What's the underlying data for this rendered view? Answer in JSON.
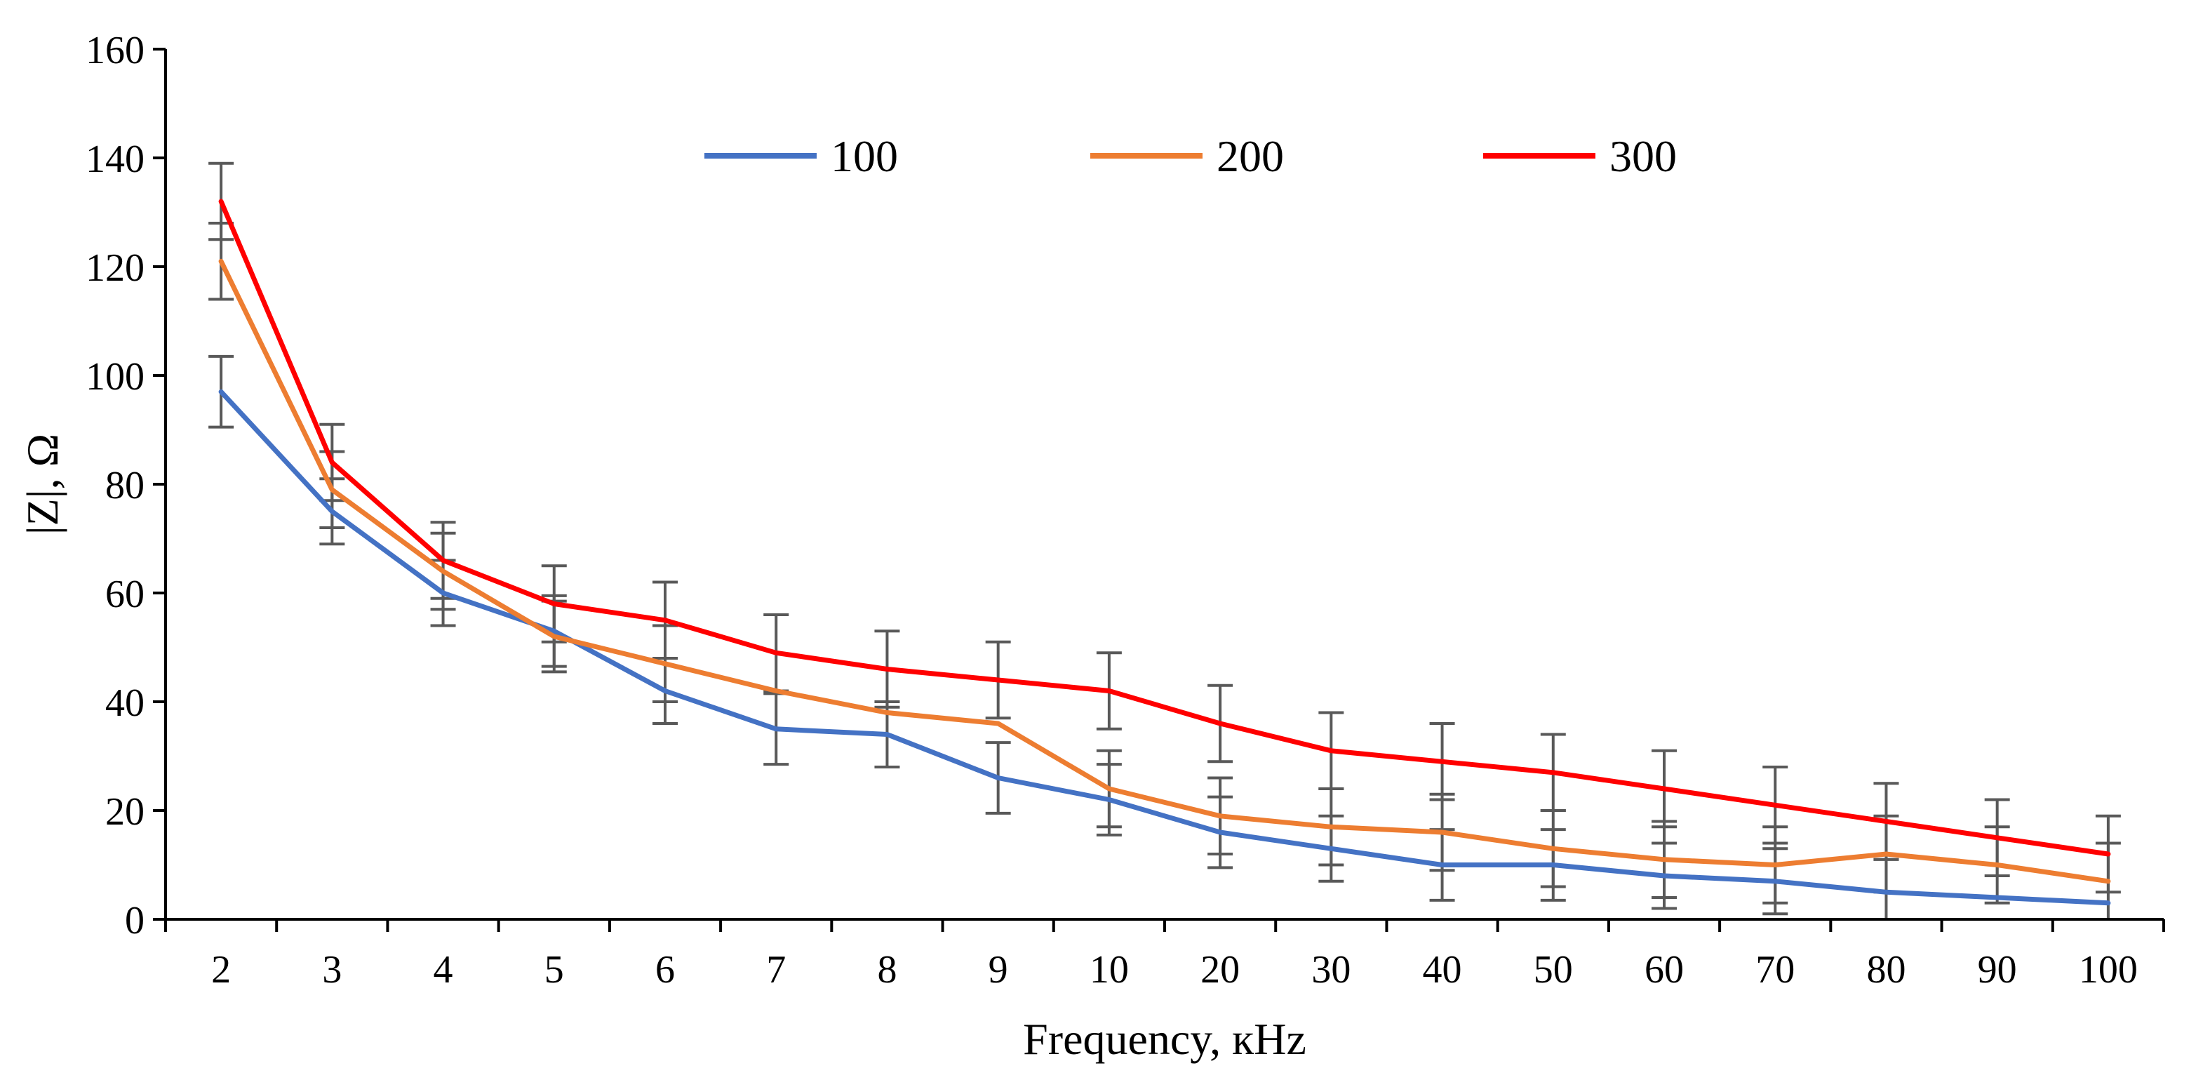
{
  "chart_data": {
    "type": "line",
    "title": "",
    "xlabel": "Frequency, кHz",
    "ylabel": "|Z|, Ω",
    "categories": [
      "2",
      "3",
      "4",
      "5",
      "6",
      "7",
      "8",
      "9",
      "10",
      "20",
      "30",
      "40",
      "50",
      "60",
      "70",
      "80",
      "90",
      "100"
    ],
    "ylim": [
      0,
      160
    ],
    "yticks": [
      0,
      20,
      40,
      60,
      80,
      100,
      120,
      140,
      160
    ],
    "grid": false,
    "legend": "top-center",
    "error_bar_color": "#595959",
    "series": [
      {
        "name": "100",
        "color": "#4472C4",
        "values": [
          97,
          75,
          60,
          53,
          42,
          35,
          34,
          26,
          22,
          16,
          13,
          10,
          10,
          8,
          7,
          5,
          4,
          3
        ],
        "errors": [
          6.5,
          6,
          6,
          6.5,
          6,
          6.5,
          6,
          6.5,
          6.5,
          6.5,
          6,
          6.5,
          6.5,
          6,
          6,
          6,
          0,
          0
        ]
      },
      {
        "name": "200",
        "color": "#ED7D31",
        "values": [
          121,
          79,
          64,
          52,
          47,
          42,
          38,
          36,
          24,
          19,
          17,
          16,
          13,
          11,
          10,
          12,
          10,
          7
        ],
        "errors": [
          7,
          7,
          7,
          6.5,
          7,
          0,
          0,
          0,
          7,
          7,
          7,
          7,
          7,
          7,
          7,
          7,
          7,
          7
        ]
      },
      {
        "name": "300",
        "color": "#FF0000",
        "values": [
          132,
          84,
          66,
          58,
          55,
          49,
          46,
          44,
          42,
          36,
          31,
          29,
          27,
          24,
          21,
          18,
          15,
          12
        ],
        "errors": [
          7,
          7,
          7,
          7,
          7,
          7,
          7,
          7,
          7,
          7,
          7,
          7,
          7,
          7,
          7,
          7,
          7,
          7
        ]
      }
    ]
  }
}
